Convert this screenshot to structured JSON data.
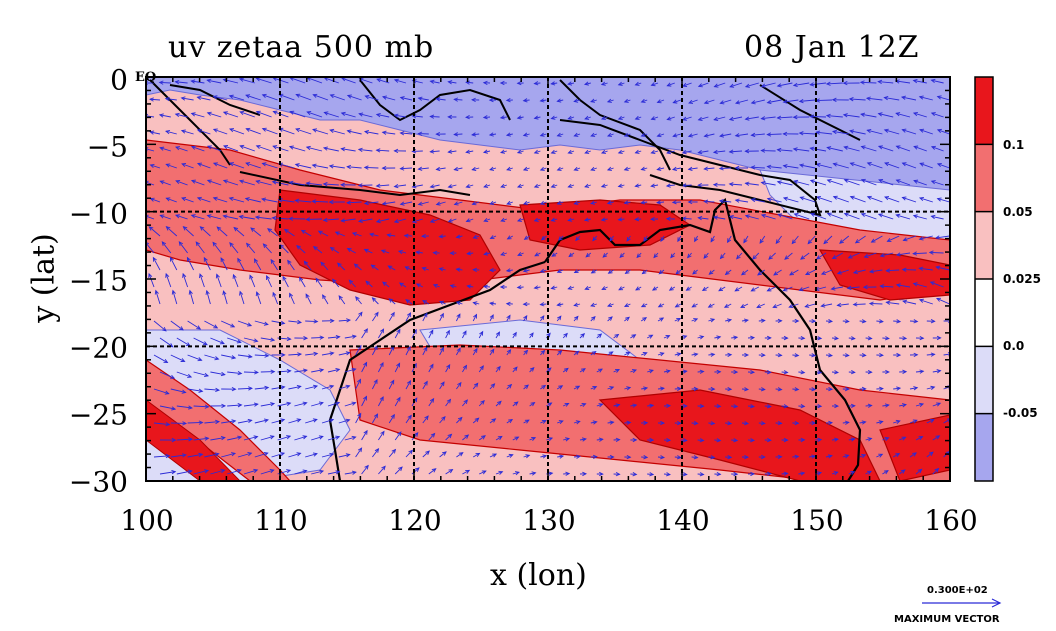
{
  "title": {
    "left": "uv zetaa 500 mb",
    "right": "08 Jan 12Z"
  },
  "axes": {
    "xlabel": "x (lon)",
    "ylabel": "y (lat)",
    "xticks": [
      "100",
      "110",
      "120",
      "130",
      "140",
      "150",
      "160"
    ],
    "yticks": [
      "0",
      "−5",
      "−10",
      "−15",
      "−20",
      "−25",
      "−30"
    ],
    "equator_label": "EQ"
  },
  "colorbar": {
    "labels": [
      "0.1",
      "0.05",
      "0.025",
      "0.0",
      "-0.05"
    ],
    "colors": [
      "#e8161c",
      "#f26f70",
      "#f9c0c0",
      "#ffffff",
      "#dcdcf8",
      "#a6a6ee"
    ]
  },
  "vector_key": {
    "value": "0.300E+02",
    "label": "MAXIMUM VECTOR"
  },
  "map": {
    "lon_range": [
      100,
      160
    ],
    "lat_range": [
      -30,
      0
    ],
    "colors": {
      "strong_positive": "#e8161c",
      "positive": "#f26f70",
      "weak_positive": "#f9c0c0",
      "negative": "#dcdcf8",
      "strong_negative": "#a6a6ee",
      "vectors": "#2b2bd6",
      "coast": "#000000"
    }
  }
}
